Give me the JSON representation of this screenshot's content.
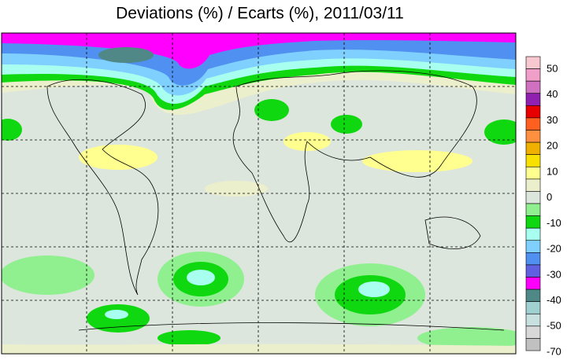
{
  "title": "Deviations (%) / Ecarts (%), 2011/03/11",
  "legend": {
    "ticks": [
      50,
      40,
      30,
      20,
      10,
      0,
      -10,
      -20,
      -30,
      -40,
      -50,
      -70
    ],
    "colors": [
      "#f8c8d0",
      "#f0a0c8",
      "#d070c0",
      "#9020b0",
      "#e80000",
      "#ff6020",
      "#ff9040",
      "#f0b000",
      "#f8e000",
      "#ffff90",
      "#ecefcc",
      "#dde6dc",
      "#90f090",
      "#10d810",
      "#a8fff0",
      "#80d0ff",
      "#5090f0",
      "#6060e0",
      "#ff00ff",
      "#508888",
      "#a0d0d0",
      "#c8e0e0",
      "#d8d8d8",
      "#c0c0c0"
    ]
  }
}
